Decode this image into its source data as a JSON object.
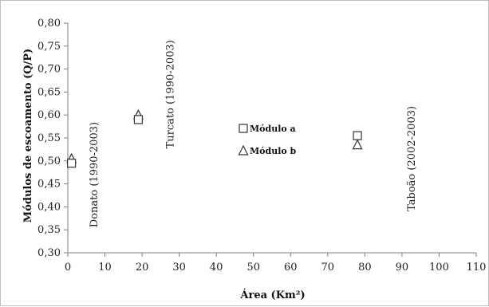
{
  "chart_data": {
    "type": "scatter",
    "xlabel": "Área (Km²)",
    "ylabel": "Módulos de escoamento (Q/P)",
    "xlim": [
      0,
      110
    ],
    "ylim": [
      0.3,
      0.8
    ],
    "x_ticks": [
      "0",
      "10",
      "20",
      "30",
      "40",
      "50",
      "60",
      "70",
      "80",
      "90",
      "100",
      "110"
    ],
    "y_ticks": [
      "0,30",
      "0,35",
      "0,40",
      "0,45",
      "0,50",
      "0,55",
      "0,60",
      "0,65",
      "0,70",
      "0,75",
      "0,80"
    ],
    "grid": false,
    "legend_position": "center",
    "series": [
      {
        "name": "Módulo a",
        "marker": "square",
        "points": [
          {
            "x": 1,
            "y": 0.495
          },
          {
            "x": 19,
            "y": 0.59
          },
          {
            "x": 78,
            "y": 0.555
          }
        ]
      },
      {
        "name": "Módulo b",
        "marker": "triangle",
        "points": [
          {
            "x": 1,
            "y": 0.505
          },
          {
            "x": 19,
            "y": 0.6
          },
          {
            "x": 78,
            "y": 0.535
          }
        ]
      }
    ],
    "annotations": [
      {
        "text": "Donato (1990-2003)",
        "x": 8,
        "y": 0.47
      },
      {
        "text": "Turcato (1990-2003)",
        "x": 28.5,
        "y": 0.645
      },
      {
        "text": "Taboão (2002-2003)",
        "x": 93.5,
        "y": 0.505
      }
    ]
  }
}
